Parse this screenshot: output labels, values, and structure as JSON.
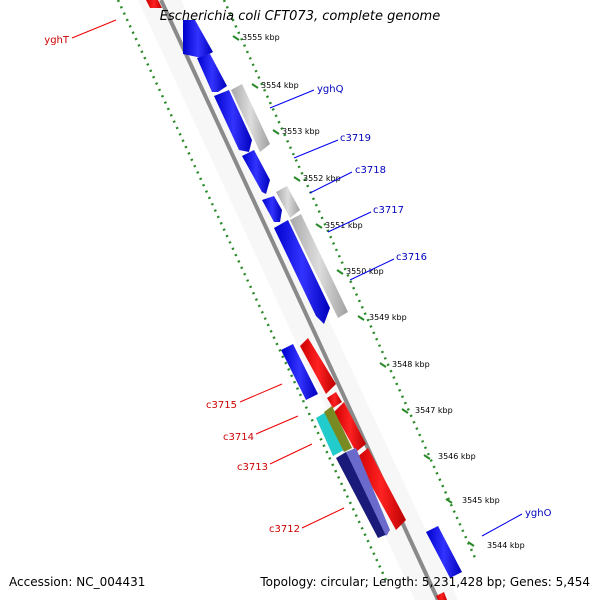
{
  "title": "Escherichia coli CFT073, complete genome",
  "footer": {
    "accession": "Accession: NC_004431",
    "topology": "Topology: circular; Length: 5,231,428 bp; Genes: 5,454"
  },
  "ticks": [
    "3555 kbp",
    "3554 kbp",
    "3553 kbp",
    "3552 kbp",
    "3551 kbp",
    "3550 kbp",
    "3549 kbp",
    "3548 kbp",
    "3547 kbp",
    "3546 kbp",
    "3545 kbp",
    "3544 kbp"
  ],
  "gene_labels_forward": [
    "yghQ",
    "c3719",
    "c3718",
    "c3717",
    "c3716",
    "yghO"
  ],
  "gene_labels_reverse": [
    "yghT",
    "c3715",
    "c3714",
    "c3713",
    "c3712"
  ],
  "colors": {
    "forward_cds": "#0000ee",
    "reverse_cds": "#ee0000",
    "gray_feature": "#c0c0c0",
    "dotted_line": "#2a8a2a",
    "backbone": "#8a8a8a",
    "forward_label": "#0000bb",
    "reverse_label": "#cc0000"
  }
}
